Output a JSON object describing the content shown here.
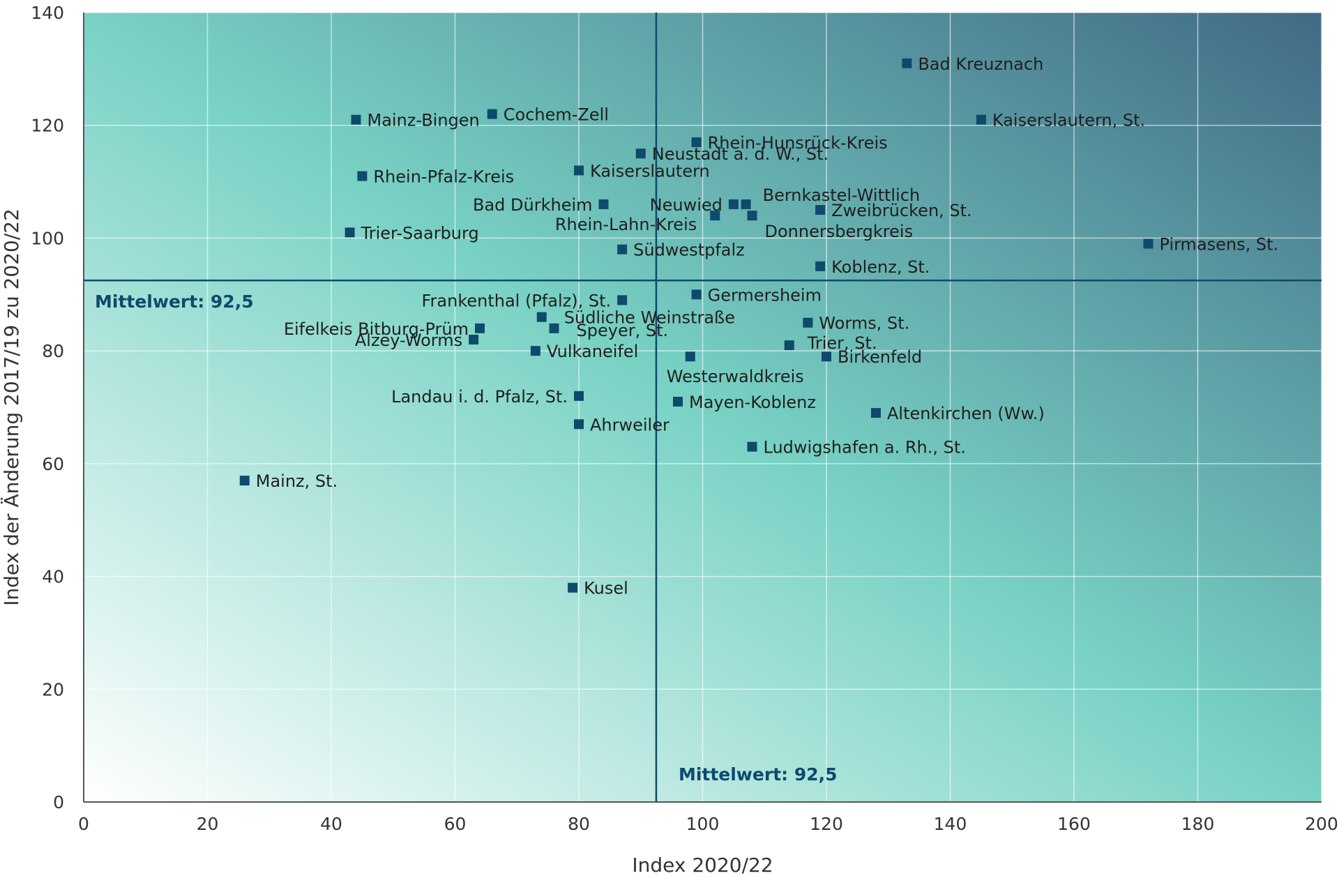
{
  "chart_data": {
    "type": "scatter",
    "title": "",
    "xlabel": "Index 2020/22",
    "ylabel": "Index der Änderung 2017/19 zu 2020/22",
    "xlim": [
      0,
      200
    ],
    "ylim": [
      0,
      140
    ],
    "x_ticks": [
      0,
      20,
      40,
      60,
      80,
      100,
      120,
      140,
      160,
      180,
      200
    ],
    "y_ticks": [
      0,
      20,
      40,
      60,
      80,
      100,
      120,
      140
    ],
    "grid": true,
    "legend": "none",
    "marker_color": "#0e4a6b",
    "gradient_colors": [
      "#ffffff",
      "#78d2c4",
      "#416a85"
    ],
    "mean_x": {
      "value": 92.5,
      "label": "Mittelwert: 92,5"
    },
    "mean_y": {
      "value": 92.5,
      "label": "Mittelwert: 92,5"
    },
    "points": [
      {
        "name": "Bad Kreuznach",
        "x": 133,
        "y": 131
      },
      {
        "name": "Kaiserslautern, St.",
        "x": 145,
        "y": 121
      },
      {
        "name": "Mainz-Bingen",
        "x": 44,
        "y": 121
      },
      {
        "name": "Cochem-Zell",
        "x": 66,
        "y": 122
      },
      {
        "name": "Rhein-Hunsrück-Kreis",
        "x": 99,
        "y": 117
      },
      {
        "name": "Neustadt a. d. W., St.",
        "x": 90,
        "y": 115
      },
      {
        "name": "Rhein-Pfalz-Kreis",
        "x": 45,
        "y": 111
      },
      {
        "name": "Kaiserslautern",
        "x": 80,
        "y": 112
      },
      {
        "name": "Bernkastel-Wittlich",
        "x": 107,
        "y": 106
      },
      {
        "name": "Neuwied",
        "x": 105,
        "y": 106
      },
      {
        "name": "Bad Dürkheim",
        "x": 84,
        "y": 106
      },
      {
        "name": "Zweibrücken, St.",
        "x": 119,
        "y": 105
      },
      {
        "name": "Rhein-Lahn-Kreis",
        "x": 102,
        "y": 104
      },
      {
        "name": "Donnersbergkreis",
        "x": 108,
        "y": 104
      },
      {
        "name": "Trier-Saarburg",
        "x": 43,
        "y": 101
      },
      {
        "name": "Pirmasens, St.",
        "x": 172,
        "y": 99
      },
      {
        "name": "Südwestpfalz",
        "x": 87,
        "y": 98
      },
      {
        "name": "Koblenz, St.",
        "x": 119,
        "y": 95
      },
      {
        "name": "Germersheim",
        "x": 99,
        "y": 90
      },
      {
        "name": "Frankenthal (Pfalz), St.",
        "x": 87,
        "y": 89
      },
      {
        "name": "Südliche Weinstraße",
        "x": 74,
        "y": 86
      },
      {
        "name": "Worms, St.",
        "x": 117,
        "y": 85
      },
      {
        "name": "Eifelkeis Bitburg-Prüm",
        "x": 64,
        "y": 84
      },
      {
        "name": "Speyer, St.",
        "x": 76,
        "y": 84
      },
      {
        "name": "Alzey-Worms",
        "x": 63,
        "y": 82
      },
      {
        "name": "Trier, St.",
        "x": 114,
        "y": 81
      },
      {
        "name": "Vulkaneifel",
        "x": 73,
        "y": 80
      },
      {
        "name": "Birkenfeld",
        "x": 120,
        "y": 79
      },
      {
        "name": "Westerwaldkreis",
        "x": 98,
        "y": 79
      },
      {
        "name": "Landau i. d. Pfalz, St.",
        "x": 80,
        "y": 72
      },
      {
        "name": "Mayen-Koblenz",
        "x": 96,
        "y": 71
      },
      {
        "name": "Altenkirchen (Ww.)",
        "x": 128,
        "y": 69
      },
      {
        "name": "Ahrweiler",
        "x": 80,
        "y": 67
      },
      {
        "name": "Ludwigshafen a. Rh., St.",
        "x": 108,
        "y": 63
      },
      {
        "name": "Mainz, St.",
        "x": 26,
        "y": 57
      },
      {
        "name": "Kusel",
        "x": 79,
        "y": 38
      }
    ]
  }
}
